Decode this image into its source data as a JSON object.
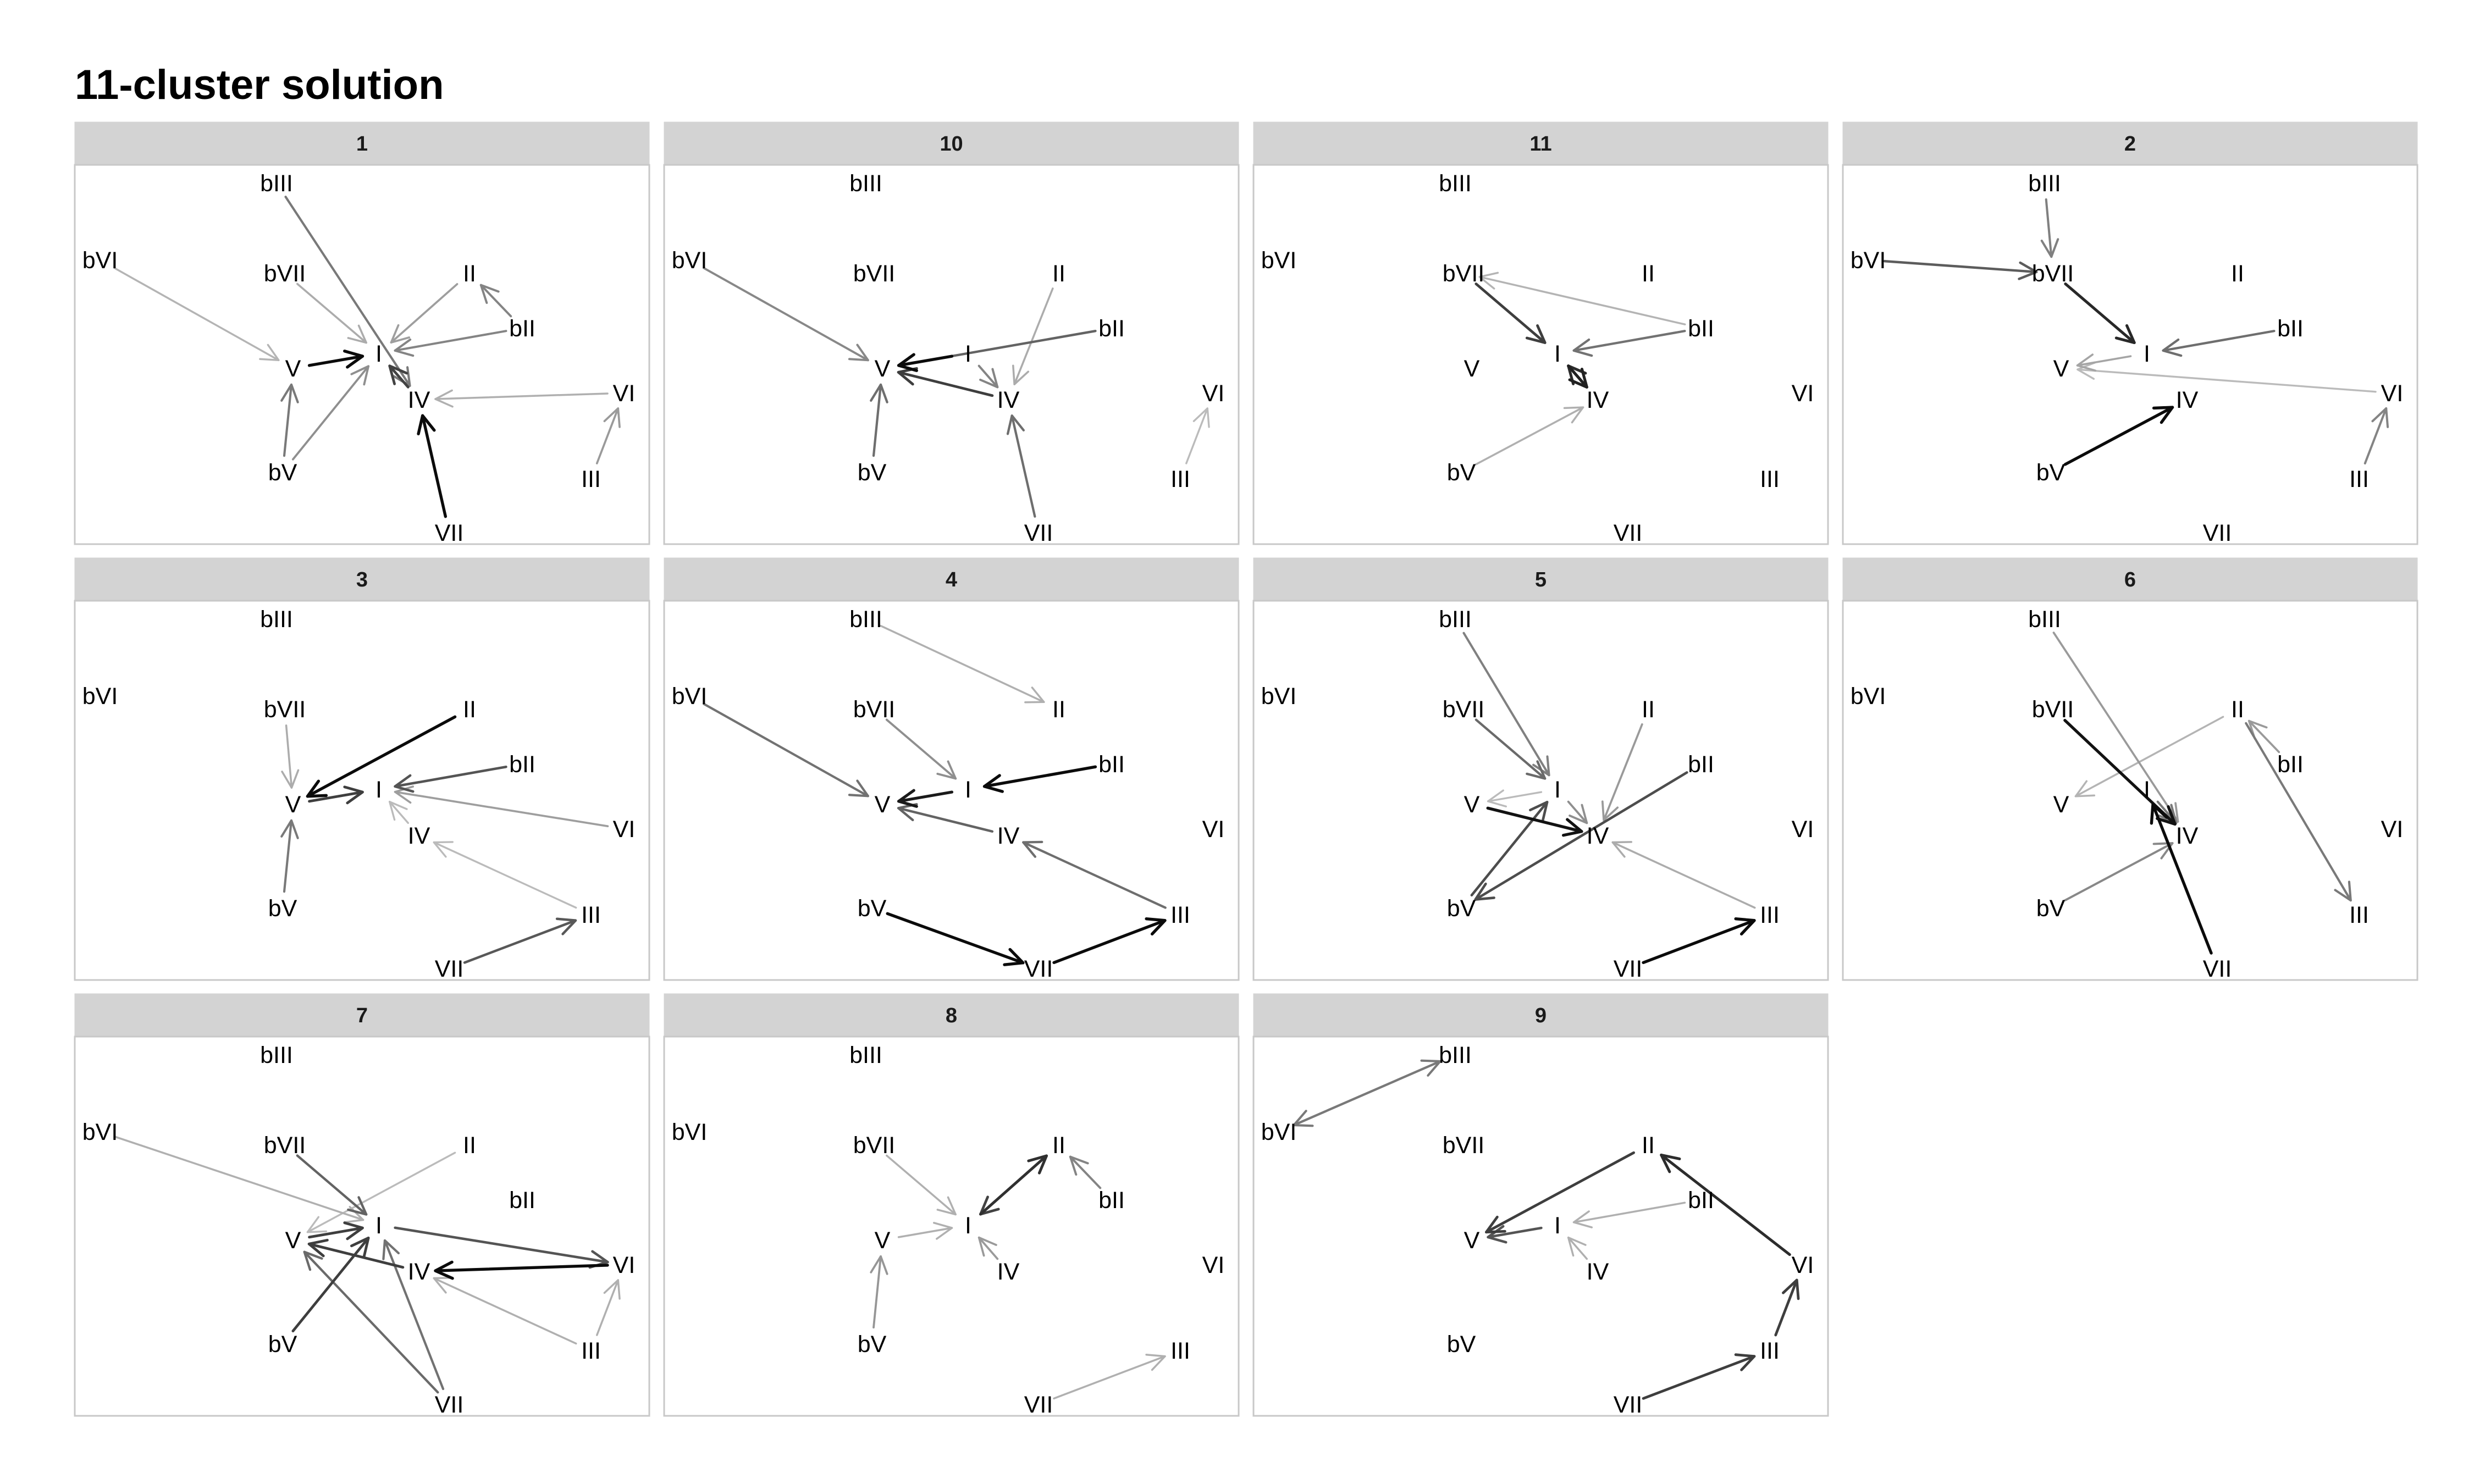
{
  "title": "11-cluster solution",
  "nodes": [
    "bIII",
    "bVI",
    "bVII",
    "II",
    "bII",
    "I",
    "V",
    "IV",
    "VI",
    "bV",
    "III",
    "VII"
  ],
  "panels": [
    {
      "label": "1",
      "edges": [
        {
          "from": "bVI",
          "to": "V",
          "strength": 0.18
        },
        {
          "from": "bVII",
          "to": "I",
          "strength": 0.22
        },
        {
          "from": "bIII",
          "to": "IV",
          "strength": 0.45
        },
        {
          "from": "II",
          "to": "I",
          "strength": 0.28
        },
        {
          "from": "bII",
          "to": "I",
          "strength": 0.4
        },
        {
          "from": "bII",
          "to": "II",
          "strength": 0.4
        },
        {
          "from": "VI",
          "to": "IV",
          "strength": 0.2
        },
        {
          "from": "V",
          "to": "I",
          "strength": 0.95
        },
        {
          "from": "bV",
          "to": "V",
          "strength": 0.45
        },
        {
          "from": "bV",
          "to": "I",
          "strength": 0.35
        },
        {
          "from": "VII",
          "to": "IV",
          "strength": 0.95
        },
        {
          "from": "III",
          "to": "VI",
          "strength": 0.3
        },
        {
          "from": "IV",
          "to": "I",
          "strength": 0.7
        }
      ]
    },
    {
      "label": "10",
      "edges": [
        {
          "from": "bVI",
          "to": "V",
          "strength": 0.38
        },
        {
          "from": "bII",
          "to": "V",
          "strength": 0.55
        },
        {
          "from": "I",
          "to": "V",
          "strength": 0.95
        },
        {
          "from": "IV",
          "to": "V",
          "strength": 0.72
        },
        {
          "from": "II",
          "to": "IV",
          "strength": 0.22
        },
        {
          "from": "I",
          "to": "IV",
          "strength": 0.4
        },
        {
          "from": "bV",
          "to": "V",
          "strength": 0.5
        },
        {
          "from": "VII",
          "to": "IV",
          "strength": 0.5
        },
        {
          "from": "III",
          "to": "VI",
          "strength": 0.15
        }
      ]
    },
    {
      "label": "11",
      "edges": [
        {
          "from": "bII",
          "to": "bVII",
          "strength": 0.18
        },
        {
          "from": "bVII",
          "to": "I",
          "strength": 0.72
        },
        {
          "from": "bII",
          "to": "I",
          "strength": 0.48
        },
        {
          "from": "IV",
          "to": "I",
          "strength": 0.8
        },
        {
          "from": "I",
          "to": "IV",
          "strength": 0.85
        },
        {
          "from": "bV",
          "to": "IV",
          "strength": 0.2
        }
      ]
    },
    {
      "label": "2",
      "edges": [
        {
          "from": "bIII",
          "to": "bVII",
          "strength": 0.42
        },
        {
          "from": "bVI",
          "to": "bVII",
          "strength": 0.58
        },
        {
          "from": "bVII",
          "to": "I",
          "strength": 0.82
        },
        {
          "from": "bII",
          "to": "I",
          "strength": 0.5
        },
        {
          "from": "VI",
          "to": "V",
          "strength": 0.15
        },
        {
          "from": "I",
          "to": "V",
          "strength": 0.25
        },
        {
          "from": "bV",
          "to": "IV",
          "strength": 0.95
        },
        {
          "from": "III",
          "to": "VI",
          "strength": 0.4
        }
      ]
    },
    {
      "label": "3",
      "edges": [
        {
          "from": "II",
          "to": "V",
          "strength": 0.95
        },
        {
          "from": "bVII",
          "to": "V",
          "strength": 0.22
        },
        {
          "from": "bII",
          "to": "I",
          "strength": 0.62
        },
        {
          "from": "VI",
          "to": "I",
          "strength": 0.28
        },
        {
          "from": "V",
          "to": "I",
          "strength": 0.72
        },
        {
          "from": "IV",
          "to": "I",
          "strength": 0.15
        },
        {
          "from": "III",
          "to": "IV",
          "strength": 0.15
        },
        {
          "from": "VII",
          "to": "III",
          "strength": 0.6
        },
        {
          "from": "bV",
          "to": "V",
          "strength": 0.45
        }
      ]
    },
    {
      "label": "4",
      "edges": [
        {
          "from": "bIII",
          "to": "II",
          "strength": 0.2
        },
        {
          "from": "bVI",
          "to": "V",
          "strength": 0.48
        },
        {
          "from": "bVII",
          "to": "I",
          "strength": 0.35
        },
        {
          "from": "bII",
          "to": "I",
          "strength": 0.95
        },
        {
          "from": "I",
          "to": "V",
          "strength": 0.88
        },
        {
          "from": "IV",
          "to": "V",
          "strength": 0.55
        },
        {
          "from": "III",
          "to": "IV",
          "strength": 0.5
        },
        {
          "from": "bV",
          "to": "VII",
          "strength": 0.95
        },
        {
          "from": "VII",
          "to": "III",
          "strength": 0.95
        }
      ]
    },
    {
      "label": "5",
      "edges": [
        {
          "from": "bIII",
          "to": "I",
          "strength": 0.42
        },
        {
          "from": "bVII",
          "to": "I",
          "strength": 0.52
        },
        {
          "from": "II",
          "to": "IV",
          "strength": 0.3
        },
        {
          "from": "bII",
          "to": "bV",
          "strength": 0.65
        },
        {
          "from": "bV",
          "to": "I",
          "strength": 0.65
        },
        {
          "from": "V",
          "to": "IV",
          "strength": 0.92
        },
        {
          "from": "I",
          "to": "V",
          "strength": 0.15
        },
        {
          "from": "I",
          "to": "IV",
          "strength": 0.35
        },
        {
          "from": "III",
          "to": "IV",
          "strength": 0.22
        },
        {
          "from": "VII",
          "to": "III",
          "strength": 0.95
        }
      ]
    },
    {
      "label": "6",
      "edges": [
        {
          "from": "bIII",
          "to": "IV",
          "strength": 0.3
        },
        {
          "from": "bVII",
          "to": "IV",
          "strength": 0.92
        },
        {
          "from": "II",
          "to": "V",
          "strength": 0.18
        },
        {
          "from": "bII",
          "to": "II",
          "strength": 0.3
        },
        {
          "from": "II",
          "to": "III",
          "strength": 0.45
        },
        {
          "from": "I",
          "to": "IV",
          "strength": 0.45
        },
        {
          "from": "bV",
          "to": "IV",
          "strength": 0.38
        },
        {
          "from": "VII",
          "to": "I",
          "strength": 0.95
        }
      ]
    },
    {
      "label": "7",
      "edges": [
        {
          "from": "bVI",
          "to": "I",
          "strength": 0.2
        },
        {
          "from": "bVII",
          "to": "I",
          "strength": 0.55
        },
        {
          "from": "II",
          "to": "V",
          "strength": 0.15
        },
        {
          "from": "I",
          "to": "VI",
          "strength": 0.62
        },
        {
          "from": "VI",
          "to": "IV",
          "strength": 0.95
        },
        {
          "from": "IV",
          "to": "V",
          "strength": 0.72
        },
        {
          "from": "V",
          "to": "I",
          "strength": 0.72
        },
        {
          "from": "bV",
          "to": "I",
          "strength": 0.72
        },
        {
          "from": "VII",
          "to": "V",
          "strength": 0.52
        },
        {
          "from": "VII",
          "to": "I",
          "strength": 0.48
        },
        {
          "from": "III",
          "to": "IV",
          "strength": 0.2
        },
        {
          "from": "III",
          "to": "VI",
          "strength": 0.2
        }
      ]
    },
    {
      "label": "8",
      "edges": [
        {
          "from": "bVII",
          "to": "I",
          "strength": 0.2
        },
        {
          "from": "I",
          "to": "II",
          "strength": 0.78
        },
        {
          "from": "II",
          "to": "I",
          "strength": 0.7
        },
        {
          "from": "bII",
          "to": "II",
          "strength": 0.4
        },
        {
          "from": "V",
          "to": "I",
          "strength": 0.2
        },
        {
          "from": "IV",
          "to": "I",
          "strength": 0.3
        },
        {
          "from": "bV",
          "to": "V",
          "strength": 0.32
        },
        {
          "from": "VII",
          "to": "III",
          "strength": 0.2
        }
      ]
    },
    {
      "label": "9",
      "edges": [
        {
          "from": "bVI",
          "to": "bIII",
          "strength": 0.45
        },
        {
          "from": "bIII",
          "to": "bVI",
          "strength": 0.45
        },
        {
          "from": "II",
          "to": "V",
          "strength": 0.72
        },
        {
          "from": "I",
          "to": "V",
          "strength": 0.62
        },
        {
          "from": "bII",
          "to": "I",
          "strength": 0.2
        },
        {
          "from": "VI",
          "to": "II",
          "strength": 0.8
        },
        {
          "from": "IV",
          "to": "I",
          "strength": 0.2
        },
        {
          "from": "III",
          "to": "VI",
          "strength": 0.72
        },
        {
          "from": "VII",
          "to": "III",
          "strength": 0.72
        }
      ]
    }
  ]
}
